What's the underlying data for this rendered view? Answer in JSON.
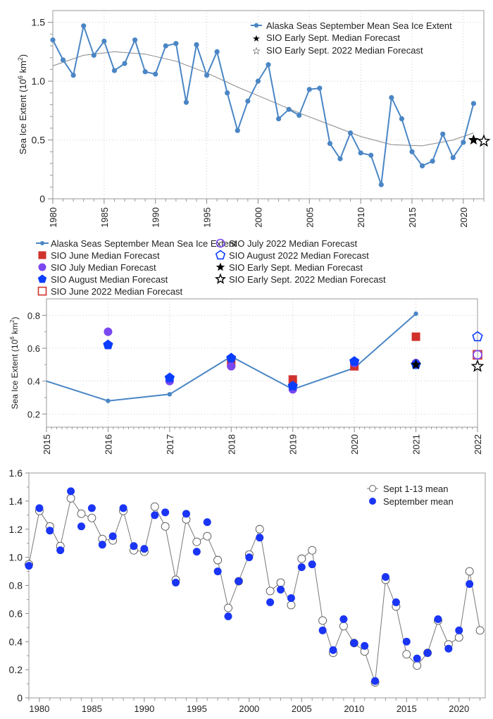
{
  "chart_data": [
    {
      "type": "line",
      "title": "",
      "xlabel": "",
      "ylabel": "Sea Ice Extent (10^6 km^2)",
      "ylabel_parts": {
        "main": "Sea Ice Extent (10",
        "exp1": "6",
        "mid": " km",
        "exp2": "2",
        "end": ")"
      },
      "xlim": [
        1980,
        2022
      ],
      "ylim": [
        0,
        1.6
      ],
      "grid": true,
      "legend_position": "top-right",
      "xticks": [
        "1980",
        "1985",
        "1990",
        "1995",
        "2000",
        "2005",
        "2010",
        "2015",
        "2020"
      ],
      "yticks": [
        "0",
        "0.5",
        "1.0",
        "1.5"
      ],
      "ytick_values": [
        0,
        0.5,
        1.0,
        1.5
      ],
      "xtick_values": [
        1980,
        1985,
        1990,
        1995,
        2000,
        2005,
        2010,
        2015,
        2020
      ],
      "legend": [
        "Alaska Seas September Mean Sea Ice Extent",
        "SIO Early Sept. Median Forecast",
        "SIO Early Sept. 2022 Median Forecast"
      ],
      "series": [
        {
          "name": "Alaska Seas September Mean Sea Ice Extent",
          "color": "#4a86c5",
          "x": [
            1980,
            1981,
            1982,
            1983,
            1984,
            1985,
            1986,
            1987,
            1988,
            1989,
            1990,
            1991,
            1992,
            1993,
            1994,
            1995,
            1996,
            1997,
            1998,
            1999,
            2000,
            2001,
            2002,
            2003,
            2004,
            2005,
            2006,
            2007,
            2008,
            2009,
            2010,
            2011,
            2012,
            2013,
            2014,
            2015,
            2016,
            2017,
            2018,
            2019,
            2020,
            2021
          ],
          "values": [
            1.35,
            1.18,
            1.05,
            1.47,
            1.22,
            1.34,
            1.09,
            1.15,
            1.35,
            1.08,
            1.06,
            1.3,
            1.32,
            0.82,
            1.31,
            1.05,
            1.25,
            0.9,
            0.58,
            0.83,
            1.0,
            1.14,
            0.68,
            0.76,
            0.71,
            0.93,
            0.94,
            0.47,
            0.34,
            0.56,
            0.39,
            0.37,
            0.12,
            0.86,
            0.68,
            0.4,
            0.28,
            0.32,
            0.55,
            0.35,
            0.48,
            0.81
          ]
        },
        {
          "name": "Trend (polynomial fit)",
          "color": "#888888",
          "x": [
            1980,
            1983,
            1986,
            1989,
            1992,
            1995,
            1998,
            2001,
            2004,
            2007,
            2010,
            2013,
            2016,
            2019,
            2021
          ],
          "values": [
            1.13,
            1.22,
            1.25,
            1.23,
            1.17,
            1.07,
            0.95,
            0.84,
            0.73,
            0.63,
            0.53,
            0.46,
            0.45,
            0.5,
            0.56
          ]
        },
        {
          "name": "SIO Early Sept. Median Forecast",
          "color": "#000000",
          "x": [
            2021
          ],
          "values": [
            0.5
          ]
        },
        {
          "name": "SIO Early Sept. 2022 Median Forecast",
          "color": "#000000",
          "x": [
            2022
          ],
          "values": [
            0.49
          ]
        }
      ]
    },
    {
      "type": "line",
      "title": "",
      "xlabel": "",
      "ylabel": "Sea Ice Extent (10^6 km^2)",
      "ylabel_parts": {
        "main": "Sea Ice Extent (10",
        "exp1": "6",
        "mid": " km",
        "exp2": "2",
        "end": ")"
      },
      "xlim": [
        2015,
        2022
      ],
      "ylim": [
        0.12,
        0.9
      ],
      "grid": true,
      "legend_position": "top (above plot, two columns)",
      "xticks": [
        "2015",
        "2016",
        "2017",
        "2018",
        "2019",
        "2020",
        "2021",
        "2022"
      ],
      "xtick_values": [
        2015,
        2016,
        2017,
        2018,
        2019,
        2020,
        2021,
        2022
      ],
      "yticks": [
        "0.2",
        "0.4",
        "0.6",
        "0.8"
      ],
      "ytick_values": [
        0.2,
        0.4,
        0.6,
        0.8
      ],
      "legend": [
        {
          "label": "Alaska Seas September Mean Sea Ice Extent",
          "marker": "line-dot",
          "color": "#4a86c5"
        },
        {
          "label": "SIO June Median Forecast",
          "marker": "square-filled",
          "color": "#d0312d"
        },
        {
          "label": "SIO July Median Forecast",
          "marker": "circle-filled",
          "color": "#7a47f0"
        },
        {
          "label": "SIO August Median Forecast",
          "marker": "pentagon-filled",
          "color": "#0a3dff"
        },
        {
          "label": "SIO June 2022 Median Forecast",
          "marker": "square-open",
          "color": "#d0312d"
        },
        {
          "label": "SIO July 2022 Median Forecast",
          "marker": "circle-open",
          "color": "#7a47f0"
        },
        {
          "label": "SIO August 2022 Median Forecast",
          "marker": "pentagon-open",
          "color": "#0a3dff"
        },
        {
          "label": "SIO Early Sept. Median Forecast",
          "marker": "star-filled",
          "color": "#000000"
        },
        {
          "label": "SIO Early Sept. 2022 Median Forecast",
          "marker": "star-open",
          "color": "#000000"
        }
      ],
      "series": [
        {
          "name": "Alaska Seas September Mean Sea Ice Extent",
          "x": [
            2015,
            2016,
            2017,
            2018,
            2019,
            2020,
            2021
          ],
          "values": [
            0.4,
            0.28,
            0.32,
            0.55,
            0.35,
            0.48,
            0.81
          ]
        },
        {
          "name": "SIO June Median Forecast",
          "x": [
            2018,
            2019,
            2020,
            2021
          ],
          "values": [
            0.51,
            0.41,
            0.49,
            0.67
          ]
        },
        {
          "name": "SIO July Median Forecast",
          "x": [
            2016,
            2017,
            2018,
            2019,
            2020,
            2021
          ],
          "values": [
            0.7,
            0.4,
            0.49,
            0.35,
            0.51,
            0.51
          ]
        },
        {
          "name": "SIO August Median Forecast",
          "x": [
            2016,
            2017,
            2018,
            2019,
            2020,
            2021
          ],
          "values": [
            0.62,
            0.42,
            0.54,
            0.37,
            0.52,
            0.5
          ]
        },
        {
          "name": "SIO June 2022 Median Forecast",
          "x": [
            2022
          ],
          "values": [
            0.56
          ]
        },
        {
          "name": "SIO July 2022 Median Forecast",
          "x": [
            2022
          ],
          "values": [
            0.56
          ]
        },
        {
          "name": "SIO August 2022 Median Forecast",
          "x": [
            2022
          ],
          "values": [
            0.67
          ]
        },
        {
          "name": "SIO Early Sept. Median Forecast",
          "x": [
            2021
          ],
          "values": [
            0.5
          ]
        },
        {
          "name": "SIO Early Sept. 2022 Median Forecast",
          "x": [
            2022
          ],
          "values": [
            0.49
          ]
        }
      ]
    },
    {
      "type": "line",
      "title": "",
      "xlabel": "",
      "ylabel": "",
      "xlim": [
        1979,
        2022.5
      ],
      "ylim": [
        0,
        1.6
      ],
      "grid": false,
      "legend_position": "top-right",
      "xticks": [
        "1980",
        "1985",
        "1990",
        "1995",
        "2000",
        "2005",
        "2010",
        "2015",
        "2020"
      ],
      "xtick_values": [
        1980,
        1985,
        1990,
        1995,
        2000,
        2005,
        2010,
        2015,
        2020
      ],
      "yticks": [
        "0",
        "0.2",
        "0.4",
        "0.6",
        "0.8",
        "1.0",
        "1.2",
        "1.4",
        "1.6"
      ],
      "ytick_values": [
        0,
        0.2,
        0.4,
        0.6,
        0.8,
        1.0,
        1.2,
        1.4,
        1.6
      ],
      "legend": [
        "Sept 1-13 mean",
        "September mean"
      ],
      "series": [
        {
          "name": "Sept 1-13 mean",
          "color": "#555555",
          "x": [
            1979,
            1980,
            1981,
            1982,
            1983,
            1984,
            1985,
            1986,
            1987,
            1988,
            1989,
            1990,
            1991,
            1992,
            1993,
            1994,
            1995,
            1996,
            1997,
            1998,
            1999,
            2000,
            2001,
            2002,
            2003,
            2004,
            2005,
            2006,
            2007,
            2008,
            2009,
            2010,
            2011,
            2012,
            2013,
            2014,
            2015,
            2016,
            2017,
            2018,
            2019,
            2020,
            2021,
            2022
          ],
          "values": [
            0.95,
            1.33,
            1.22,
            1.08,
            1.42,
            1.31,
            1.28,
            1.13,
            1.12,
            1.33,
            1.05,
            1.04,
            1.36,
            1.22,
            0.84,
            1.27,
            1.11,
            1.15,
            0.98,
            0.64,
            0.83,
            1.02,
            1.2,
            0.76,
            0.82,
            0.66,
            0.99,
            1.05,
            0.55,
            0.32,
            0.51,
            0.39,
            0.33,
            0.11,
            0.84,
            0.65,
            0.31,
            0.23,
            0.32,
            0.55,
            0.38,
            0.43,
            0.9,
            0.48
          ]
        },
        {
          "name": "September mean",
          "color": "#1a35f5",
          "x": [
            1979,
            1980,
            1981,
            1982,
            1983,
            1984,
            1985,
            1986,
            1987,
            1988,
            1989,
            1990,
            1991,
            1992,
            1993,
            1994,
            1995,
            1996,
            1997,
            1998,
            1999,
            2000,
            2001,
            2002,
            2003,
            2004,
            2005,
            2006,
            2007,
            2008,
            2009,
            2010,
            2011,
            2012,
            2013,
            2014,
            2015,
            2016,
            2017,
            2018,
            2019,
            2020,
            2021
          ],
          "values": [
            0.94,
            1.35,
            1.19,
            1.05,
            1.47,
            1.22,
            1.35,
            1.09,
            1.15,
            1.35,
            1.08,
            1.06,
            1.3,
            1.32,
            0.82,
            1.31,
            1.04,
            1.25,
            0.9,
            0.58,
            0.83,
            1.0,
            1.14,
            0.68,
            0.77,
            0.71,
            0.93,
            0.95,
            0.48,
            0.34,
            0.56,
            0.39,
            0.37,
            0.12,
            0.86,
            0.68,
            0.4,
            0.28,
            0.32,
            0.56,
            0.35,
            0.48,
            0.81
          ]
        }
      ]
    }
  ]
}
